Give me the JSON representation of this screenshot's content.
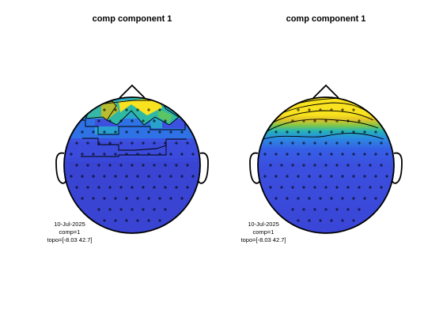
{
  "panels": [
    {
      "title": "comp component 1",
      "date": "10-Jul-2025",
      "comp": "comp=1",
      "topo": "topo=[-8.03 42.7]",
      "style": "patch",
      "colormap": "parula"
    },
    {
      "title": "comp component 1",
      "date": "10-Jul-2025",
      "comp": "comp=1",
      "topo": "topo=[-8.03 42.7]",
      "style": "smooth-contour",
      "colormap": "parula"
    }
  ],
  "colors": {
    "background": "#ffffff",
    "outline": "#000000",
    "low": "#3b47d8",
    "high": "#f9e21f"
  }
}
